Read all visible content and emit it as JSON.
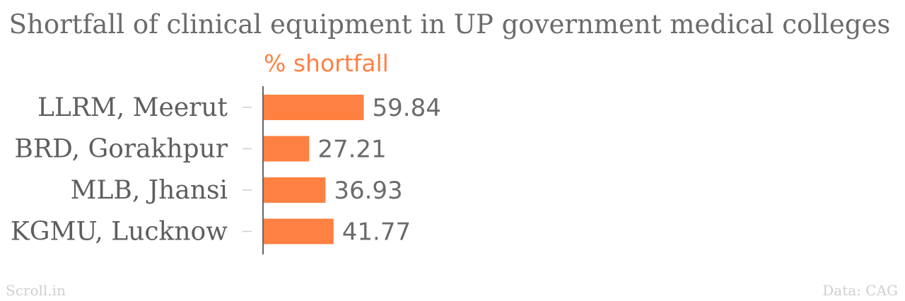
{
  "source_credit": "Scroll.in",
  "data_credit": "Data: CAG",
  "colors": {
    "bar": "#ff8142",
    "text": "#6b6b6b",
    "axis": "#333333",
    "tick": "#cfcfcf",
    "footer": "#cfcfcf"
  },
  "chart_data": {
    "type": "bar",
    "orientation": "horizontal",
    "title": "Shortfall of clinical equipment in UP government medical colleges",
    "xlabel": "",
    "ylabel": "",
    "categories": [
      "LLRM, Meerut",
      "BRD, Gorakhpur",
      "MLB, Jhansi",
      "KGMU, Lucknow"
    ],
    "series": [
      {
        "name": "% shortfall",
        "values": [
          59.84,
          27.21,
          36.93,
          41.77
        ]
      }
    ],
    "xlim": [
      0,
      100
    ],
    "grid": false,
    "data_labels": true
  }
}
